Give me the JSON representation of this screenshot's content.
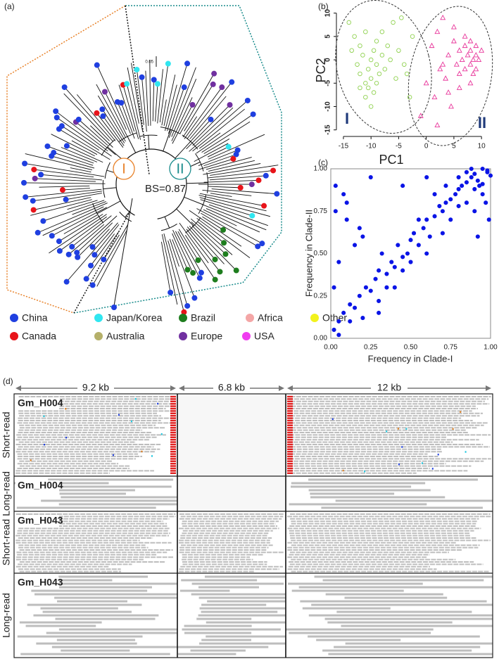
{
  "panel_labels": [
    "(a)",
    "(b)",
    "(c)",
    "(d)"
  ],
  "tree": {
    "clade_labels": [
      "I",
      "II"
    ],
    "bootstrap": "BS=0.87",
    "scale_label": "0.05",
    "legend": [
      {
        "name": "China",
        "color": "#1f3fe0"
      },
      {
        "name": "Japan/Korea",
        "color": "#30e6f0"
      },
      {
        "name": "Brazil",
        "color": "#1e7d1e"
      },
      {
        "name": "Africa",
        "color": "#f4a6a6"
      },
      {
        "name": "Other",
        "color": "#f2f21c"
      },
      {
        "name": "Canada",
        "color": "#e8141a"
      },
      {
        "name": "Australia",
        "color": "#b5b06a"
      },
      {
        "name": "Europe",
        "color": "#7030a0"
      },
      {
        "name": "USA",
        "color": "#f03cf0"
      }
    ]
  },
  "chart_data": [
    {
      "type": "scatter",
      "xlabel": "PC1",
      "ylabel": "PC2",
      "xlim": [
        -15.5,
        11
      ],
      "ylim": [
        -15.5,
        11
      ],
      "xticks": [
        -15,
        -10,
        -5,
        0,
        5,
        10
      ],
      "yticks": [
        10,
        5,
        0,
        -5,
        -10,
        -15
      ],
      "series": [
        {
          "name": "I",
          "color": "#8fd14f",
          "marker": "circle",
          "x": [
            -14,
            -13.5,
            -13,
            -12.5,
            -12,
            -12,
            -11.5,
            -11,
            -11,
            -10.5,
            -10.5,
            -10,
            -10,
            -9.5,
            -9.5,
            -9,
            -9,
            -8.5,
            -8,
            -8,
            -7.5,
            -7,
            -6.5,
            -6,
            -5.5,
            -5,
            -4.5,
            -4,
            -3.5,
            -3,
            -2.5,
            -12,
            -11,
            -10,
            -9
          ],
          "values": [
            8,
            2,
            5,
            -1,
            3,
            -3,
            1,
            -5,
            6,
            -2,
            -6,
            0,
            -4,
            2,
            -7,
            -1,
            4,
            -3,
            1,
            6,
            -2,
            3,
            0,
            8,
            -4,
            2,
            9,
            -1,
            -3,
            -8,
            5,
            -6,
            -8,
            -10,
            -5
          ]
        },
        {
          "name": "II",
          "color": "#e8359a",
          "marker": "triangle",
          "x": [
            0,
            1,
            1.5,
            2,
            2.5,
            3,
            3.5,
            4,
            4.5,
            5,
            5.5,
            6,
            6,
            6.5,
            7,
            7,
            7.5,
            8,
            8,
            8,
            8.5,
            8.5,
            9,
            9,
            9,
            9.5,
            10,
            -1,
            2,
            4,
            6,
            7,
            8,
            3,
            5
          ],
          "values": [
            -5,
            3,
            -8,
            6,
            -2,
            9,
            -4,
            1,
            -10,
            4,
            -1,
            2,
            -3,
            0,
            3,
            -2,
            1,
            -1,
            2,
            4,
            0,
            -3,
            1,
            3,
            -2,
            0,
            2,
            -12,
            -14,
            -7,
            -6,
            5,
            -5,
            -1,
            7
          ]
        }
      ]
    },
    {
      "type": "scatter",
      "xlabel": "Frequency in Clade-I",
      "ylabel": "Frequency in Clade-II",
      "xlim": [
        0,
        1
      ],
      "ylim": [
        0,
        1
      ],
      "xticks": [
        {
          "value": 0,
          "label": "0.00"
        },
        {
          "value": 0.25,
          "label": "0.25"
        },
        {
          "value": 0.5,
          "label": "0.50"
        },
        {
          "value": 0.75,
          "label": "0.75"
        },
        {
          "value": 1,
          "label": "1.00"
        }
      ],
      "yticks": [
        {
          "value": 0,
          "label": "0.00"
        },
        {
          "value": 0.25,
          "label": "0.25"
        },
        {
          "value": 0.5,
          "label": "0.50"
        },
        {
          "value": 0.75,
          "label": "0.75"
        },
        {
          "value": 1,
          "label": "1.00"
        }
      ],
      "series": [
        {
          "color": "#0a14e6",
          "marker": "circle",
          "x": [
            0.02,
            0.03,
            0.05,
            0.08,
            0.1,
            0.12,
            0.15,
            0.18,
            0.2,
            0.22,
            0.25,
            0.28,
            0.3,
            0.32,
            0.35,
            0.38,
            0.4,
            0.42,
            0.45,
            0.48,
            0.5,
            0.52,
            0.55,
            0.58,
            0.6,
            0.62,
            0.65,
            0.68,
            0.7,
            0.72,
            0.75,
            0.78,
            0.8,
            0.82,
            0.85,
            0.88,
            0.9,
            0.92,
            0.95,
            0.98,
            1.0,
            0.02,
            0.05,
            0.08,
            0.12,
            0.15,
            0.2,
            0.25,
            0.3,
            0.35,
            0.4,
            0.45,
            0.5,
            0.55,
            0.6,
            0.65,
            0.7,
            0.75,
            0.8,
            0.85,
            0.9,
            0.95,
            0.98,
            0.85,
            0.9,
            0.95,
            0.8,
            0.88,
            0.93,
            0.97,
            0.72,
            0.6,
            0.1,
            0.05,
            0.18,
            0.3,
            0.45,
            0.92,
            0.99,
            0.03
          ],
          "values": [
            0.05,
            0.9,
            0.1,
            0.15,
            0.8,
            0.2,
            0.18,
            0.25,
            0.6,
            0.3,
            0.28,
            0.35,
            0.4,
            0.5,
            0.38,
            0.45,
            0.42,
            0.55,
            0.48,
            0.5,
            0.58,
            0.62,
            0.55,
            0.65,
            0.7,
            0.6,
            0.72,
            0.78,
            0.75,
            0.8,
            0.82,
            0.85,
            0.88,
            0.9,
            0.92,
            0.95,
            0.97,
            0.93,
            1.0,
            0.98,
            0.96,
            0.3,
            0.02,
            0.85,
            0.1,
            0.55,
            0.12,
            0.95,
            0.22,
            0.3,
            0.3,
            0.4,
            0.45,
            0.7,
            0.5,
            0.85,
            0.62,
            0.7,
            0.78,
            0.8,
            0.88,
            0.91,
            0.99,
            0.98,
            0.75,
            0.85,
            0.95,
            1.0,
            0.9,
            0.8,
            0.9,
            0.95,
            0.7,
            0.45,
            0.65,
            0.15,
            0.9,
            0.6,
            0.7,
            0.75
          ]
        }
      ]
    }
  ],
  "alignment": {
    "segments": [
      "9.2 kb",
      "6.8 kb",
      "12 kb"
    ],
    "tracks": [
      {
        "sample": "Gm_H004",
        "read_type": "Short-read"
      },
      {
        "sample": "Gm_H004",
        "read_type": "Long-read"
      },
      {
        "sample": "Gm_H043",
        "read_type": "Short-read"
      },
      {
        "sample": "Gm_H043",
        "read_type": "Long-read"
      }
    ]
  }
}
